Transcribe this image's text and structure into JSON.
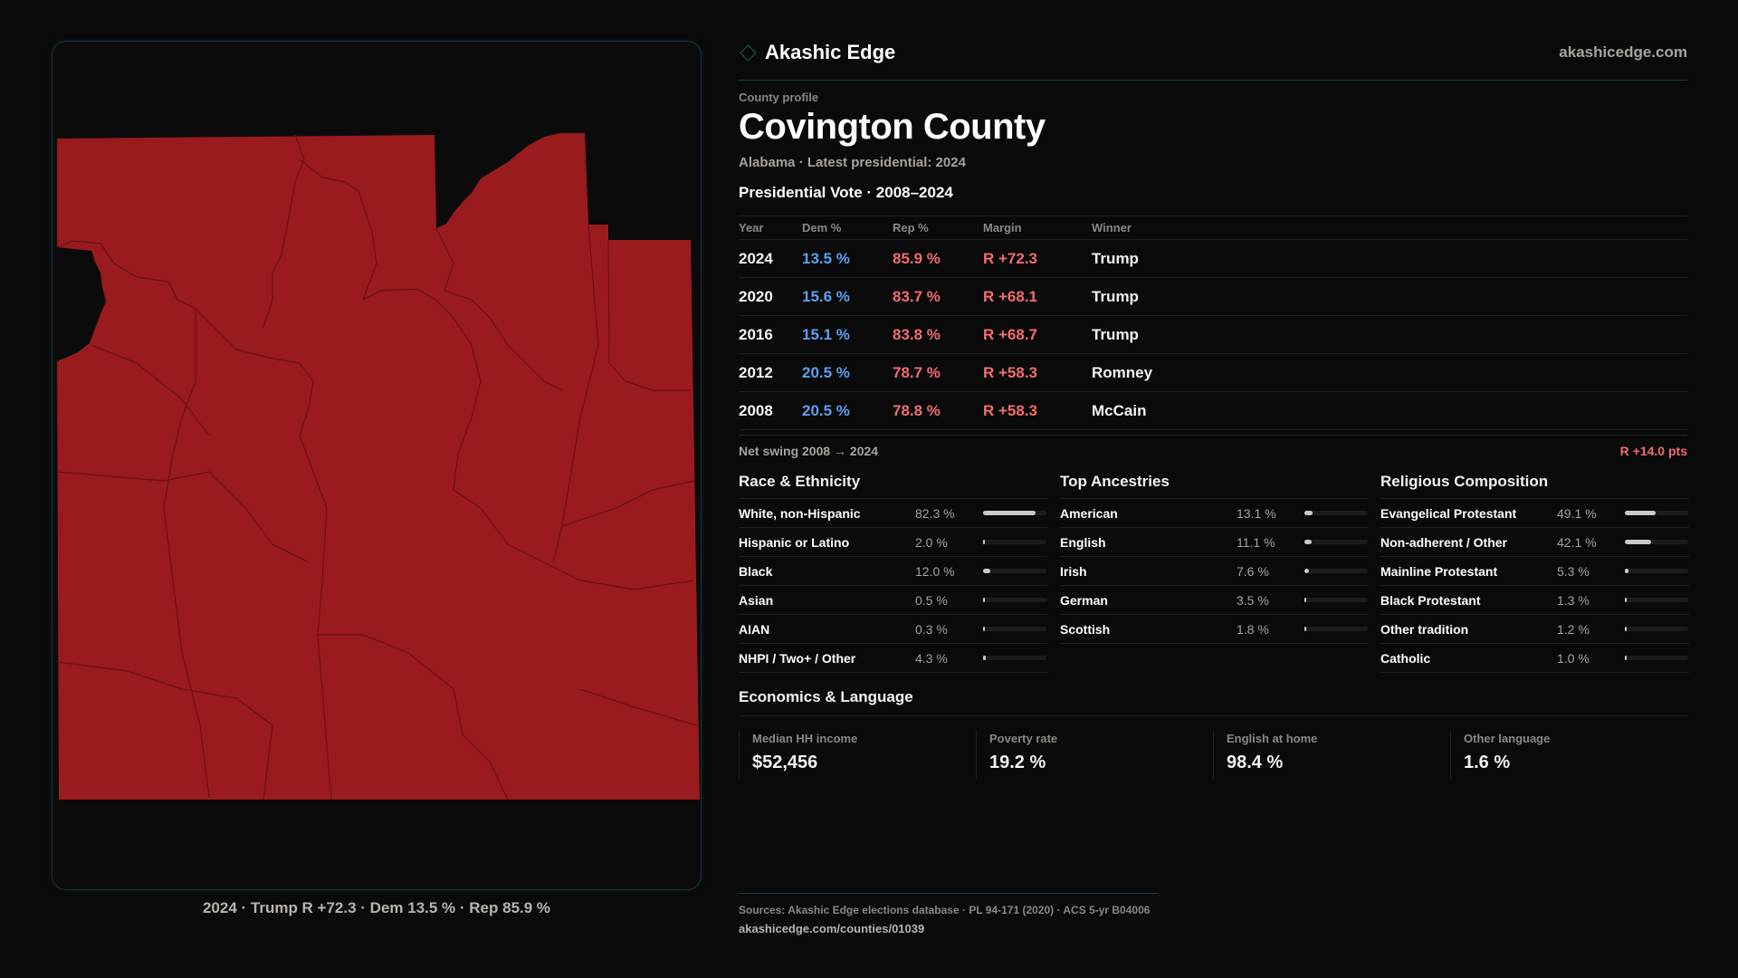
{
  "brand": {
    "name": "Akashic Edge",
    "site": "akashicedge.com",
    "icon": "diamond-icon"
  },
  "profile": {
    "eyebrow": "County profile",
    "title": "Covington County",
    "subtitle": "Alabama · Latest presidential: 2024"
  },
  "map": {
    "fill": "#991b1e",
    "caption": "2024 · Trump R +72.3 · Dem 13.5 % · Rep 85.9 %"
  },
  "vote": {
    "heading": "Presidential Vote · 2008–2024",
    "columns": [
      "Year",
      "Dem %",
      "Rep %",
      "Margin",
      "Winner"
    ],
    "rows": [
      [
        "2024",
        "13.5 %",
        "85.9 %",
        "R +72.3",
        "Trump"
      ],
      [
        "2020",
        "15.6 %",
        "83.7 %",
        "R +68.1",
        "Trump"
      ],
      [
        "2016",
        "15.1 %",
        "83.8 %",
        "R +68.7",
        "Trump"
      ],
      [
        "2012",
        "20.5 %",
        "78.7 %",
        "R +58.3",
        "Romney"
      ],
      [
        "2008",
        "20.5 %",
        "78.8 %",
        "R +58.3",
        "McCain"
      ]
    ],
    "swing_label": "Net swing 2008 → 2024",
    "swing_value": "R +14.0 pts"
  },
  "sections": [
    {
      "title": "Race & Ethnicity",
      "rows": [
        {
          "label": "White, non-Hispanic",
          "pct": "82.3 %",
          "value": 82.3
        },
        {
          "label": "Hispanic or Latino",
          "pct": "2.0 %",
          "value": 2.0
        },
        {
          "label": "Black",
          "pct": "12.0 %",
          "value": 12.0
        },
        {
          "label": "Asian",
          "pct": "0.5 %",
          "value": 0.5
        },
        {
          "label": "AIAN",
          "pct": "0.3 %",
          "value": 0.3
        },
        {
          "label": "NHPI / Two+ / Other",
          "pct": "4.3 %",
          "value": 4.3
        }
      ]
    },
    {
      "title": "Top Ancestries",
      "rows": [
        {
          "label": "American",
          "pct": "13.1 %",
          "value": 13.1
        },
        {
          "label": "English",
          "pct": "11.1 %",
          "value": 11.1
        },
        {
          "label": "Irish",
          "pct": "7.6 %",
          "value": 7.6
        },
        {
          "label": "German",
          "pct": "3.5 %",
          "value": 3.5
        },
        {
          "label": "Scottish",
          "pct": "1.8 %",
          "value": 1.8
        }
      ]
    },
    {
      "title": "Religious Composition",
      "rows": [
        {
          "label": "Evangelical Protestant",
          "pct": "49.1 %",
          "value": 49.1
        },
        {
          "label": "Non-adherent / Other",
          "pct": "42.1 %",
          "value": 42.1
        },
        {
          "label": "Mainline Protestant",
          "pct": "5.3 %",
          "value": 5.3
        },
        {
          "label": "Black Protestant",
          "pct": "1.3 %",
          "value": 1.3
        },
        {
          "label": "Other tradition",
          "pct": "1.2 %",
          "value": 1.2
        },
        {
          "label": "Catholic",
          "pct": "1.0 %",
          "value": 1.0
        }
      ]
    }
  ],
  "economics": {
    "title": "Economics & Language",
    "cards": [
      {
        "label": "Median HH income",
        "value": "$52,456"
      },
      {
        "label": "Poverty rate",
        "value": "19.2 %"
      },
      {
        "label": "English at home",
        "value": "98.4 %"
      },
      {
        "label": "Other language",
        "value": "1.6 %"
      }
    ]
  },
  "footer": {
    "sources": "Sources: Akashic Edge elections database · PL 94-171 (2020) · ACS 5-yr B04006",
    "url": "akashicedge.com/counties/01039"
  }
}
